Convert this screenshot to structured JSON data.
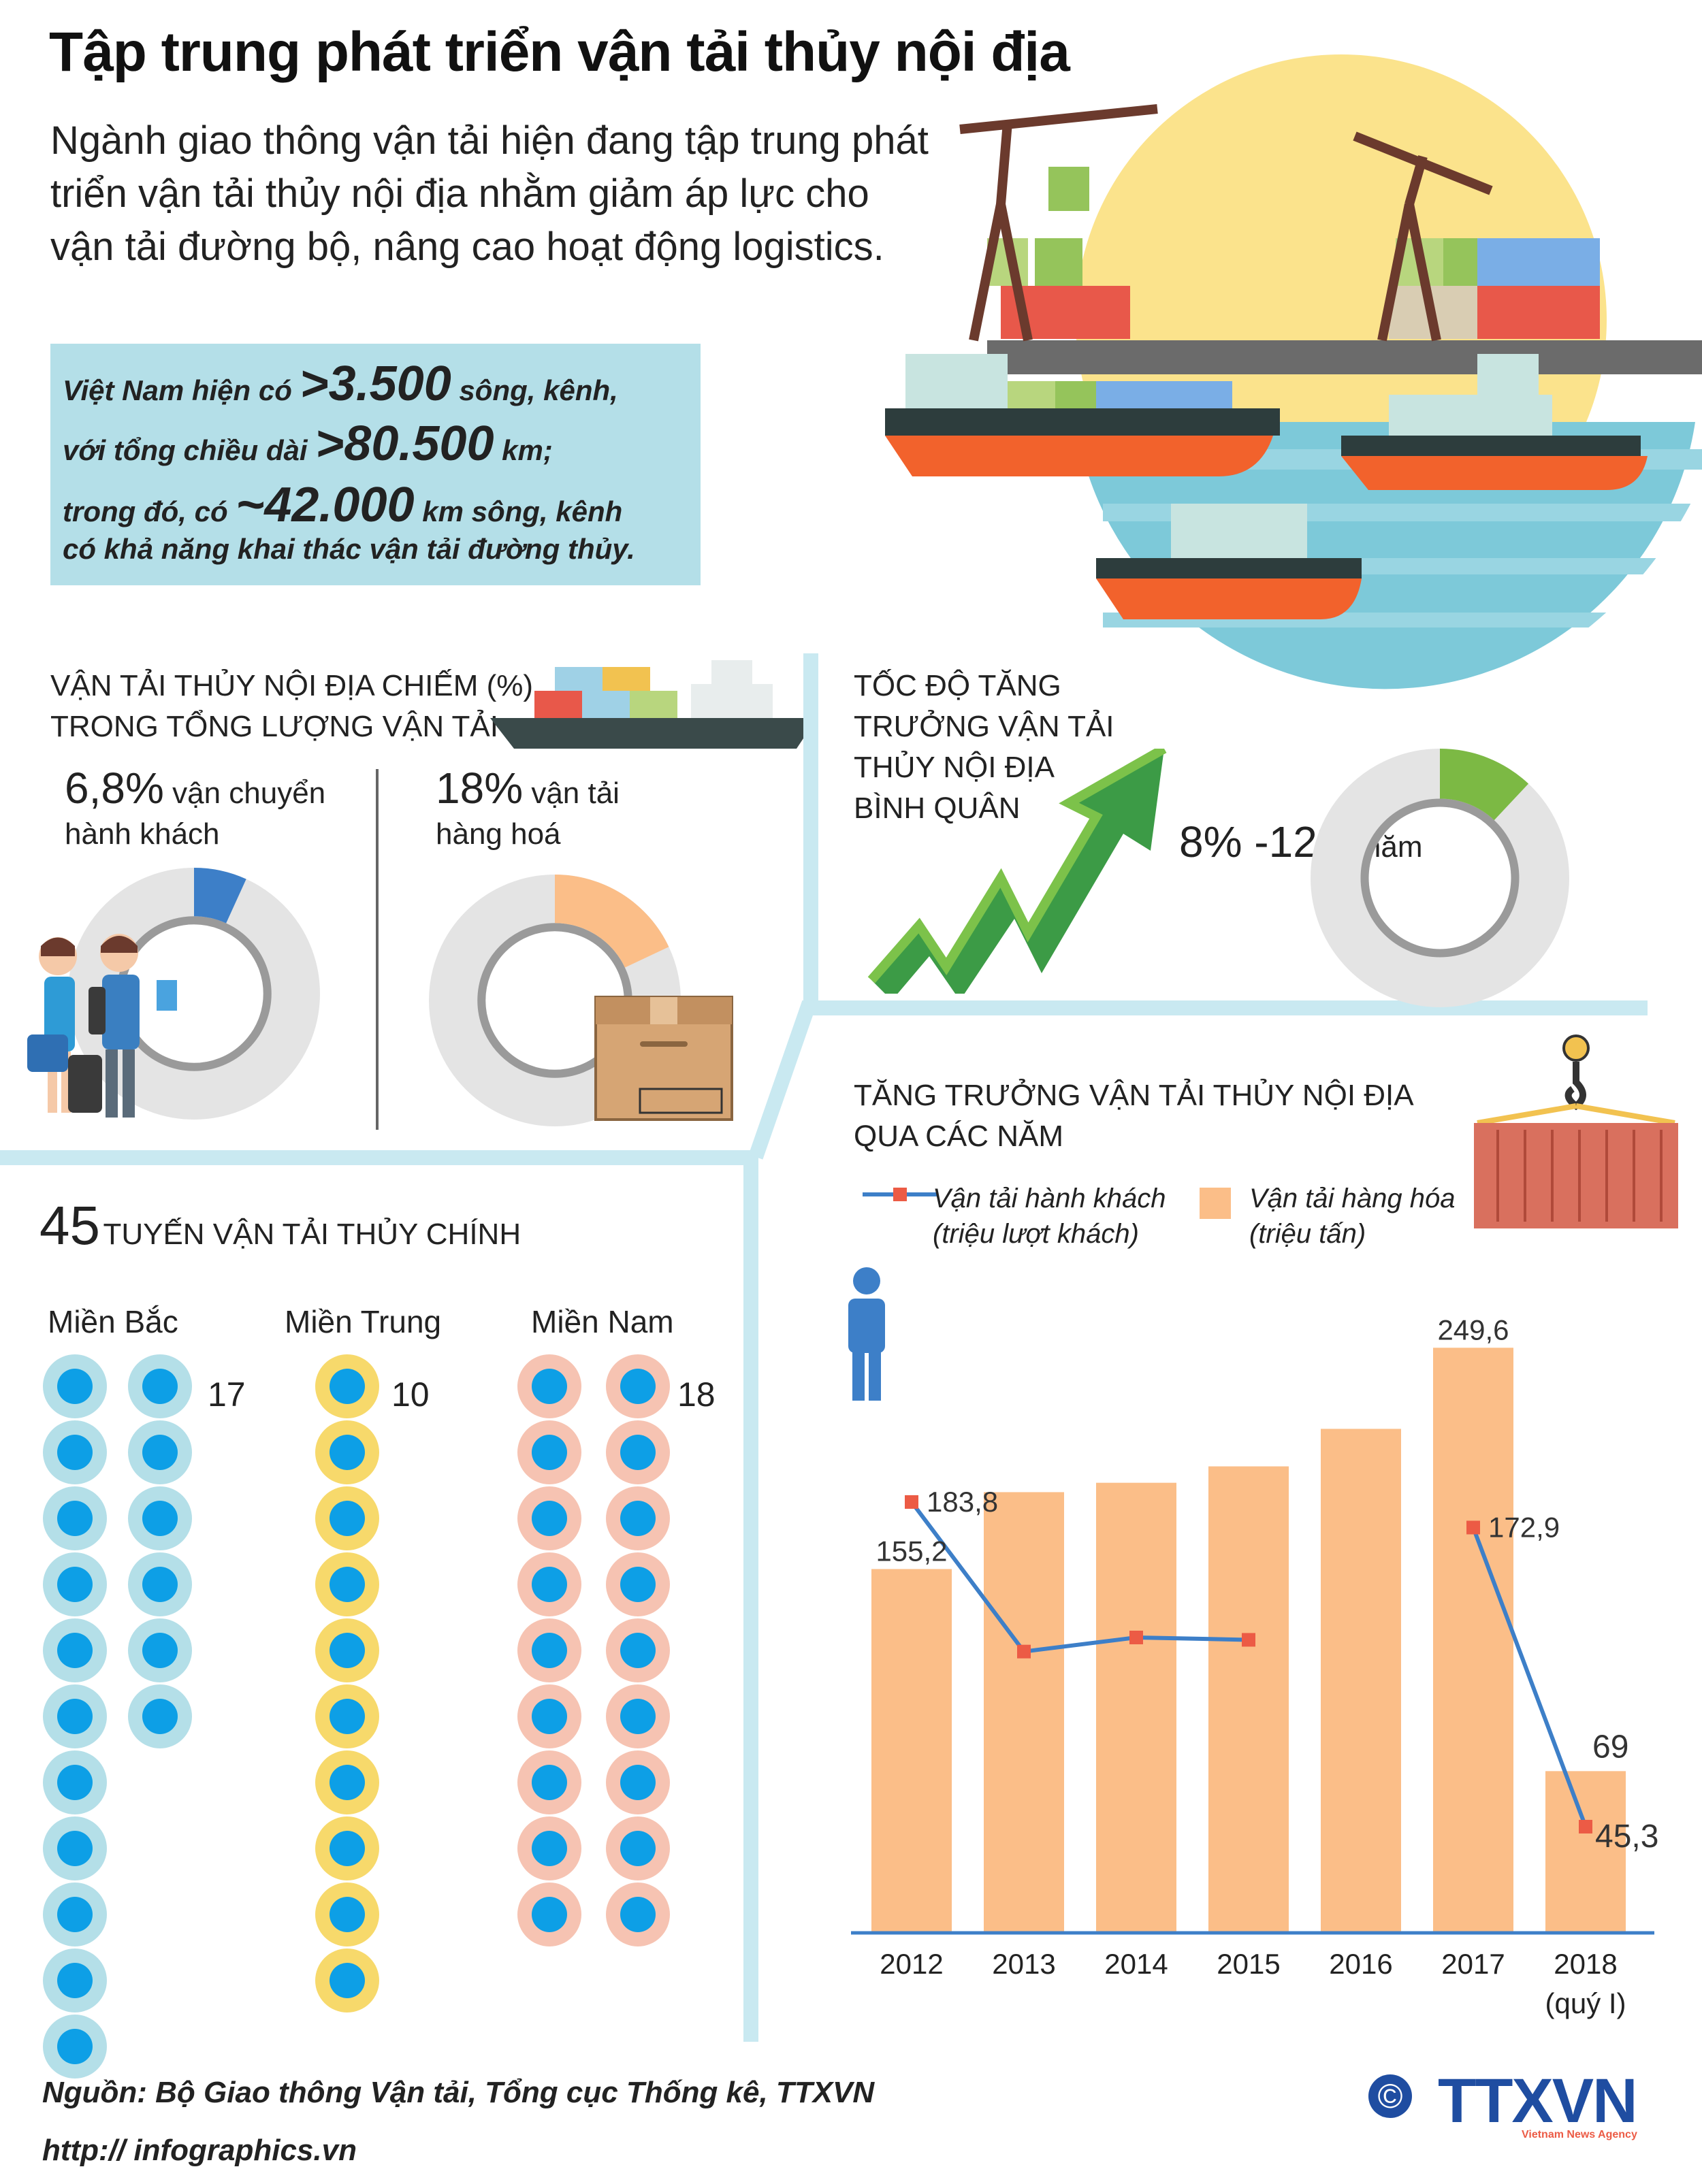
{
  "title": "Tập trung phát triển vận tải thủy nội địa",
  "intro": "Ngành giao thông vận tải hiện đang tập trung phát triển vận tải thủy nội địa nhằm giảm áp lực cho vận tải đường bộ, nâng cao hoạt động logistics.",
  "facts": {
    "line1_pre": "Việt Nam hiện có ",
    "line1_big": ">3.500",
    "line1_post": " sông, kênh,",
    "line2_pre": "với tổng chiều dài ",
    "line2_big": ">80.500",
    "line2_post": " km;",
    "line3_pre": "trong đó, có ",
    "line3_big": "~42.000",
    "line3_post": " km sông, kênh",
    "line4": "có khả năng khai thác vận tải đường thủy."
  },
  "share": {
    "title_line1": "VẬN TẢI THỦY NỘI ĐỊA CHIẾM (%)",
    "title_line2": "TRONG TỔNG LƯỢNG VẬN TẢI",
    "passenger_num": "6,8%",
    "passenger_label1": " vận chuyển",
    "passenger_label2": "hành khách",
    "passenger_value": 6.8,
    "cargo_num": "18%",
    "cargo_label1": " vận tải",
    "cargo_label2": "hàng hoá",
    "cargo_value": 18
  },
  "growth_rate": {
    "title_line1": "TỐC ĐỘ TĂNG",
    "title_line2": "TRƯỞNG VẬN TẢI",
    "title_line3": "THỦY NỘI ĐỊA",
    "title_line4": "BÌNH QUÂN",
    "value_text": "8% -12%",
    "unit": "/năm",
    "value_max": 12
  },
  "routes": {
    "total": "45",
    "title": "TUYẾN VẬN TẢI THỦY CHÍNH",
    "regions": [
      {
        "name": "Miền Bắc",
        "count": "17",
        "n": 17
      },
      {
        "name": "Miền Trung",
        "count": "10",
        "n": 10
      },
      {
        "name": "Miền Nam",
        "count": "18",
        "n": 18
      }
    ]
  },
  "growth_chart": {
    "title_line1": "TĂNG TRƯỞNG VẬN TẢI THỦY NỘI ĐỊA",
    "title_line2": "QUA CÁC NĂM",
    "legend_line_1": "Vận tải hành khách",
    "legend_line_2": "(triệu lượt khách)",
    "legend_bar_1": "Vận tải hàng hóa",
    "legend_bar_2": "(triệu tấn)",
    "year_2018_sub": "(quý I)"
  },
  "chart_data": {
    "type": "bar",
    "categories": [
      "2012",
      "2013",
      "2014",
      "2015",
      "2016",
      "2017",
      "2018"
    ],
    "series": [
      {
        "name": "Vận tải hàng hóa (triệu tấn)",
        "kind": "bar",
        "values": [
          155.2,
          188,
          192,
          199,
          215,
          249.6,
          69
        ]
      },
      {
        "name": "Vận tải hành khách (triệu lượt khách)",
        "kind": "line",
        "values": [
          183.8,
          120,
          126,
          125,
          null,
          172.9,
          45.3
        ]
      }
    ],
    "labels": {
      "bar_2012": "155,2",
      "bar_2017": "249,6",
      "bar_2018": "69",
      "line_2012": "183,8",
      "line_2017": "172,9",
      "line_2018": "45,3"
    },
    "ylim": [
      0,
      270
    ],
    "colors": {
      "bar": "#fbbe88",
      "line": "#3d7fc8",
      "marker": "#ec5b45"
    }
  },
  "footer": {
    "source": "Nguồn: Bộ Giao thông Vận tải, Tổng cục Thống kê, TTXVN",
    "url": "http:// infographics.vn",
    "brand": "TTXVN",
    "brand_sub": "Vietnam News Agency",
    "copyright": "©"
  }
}
